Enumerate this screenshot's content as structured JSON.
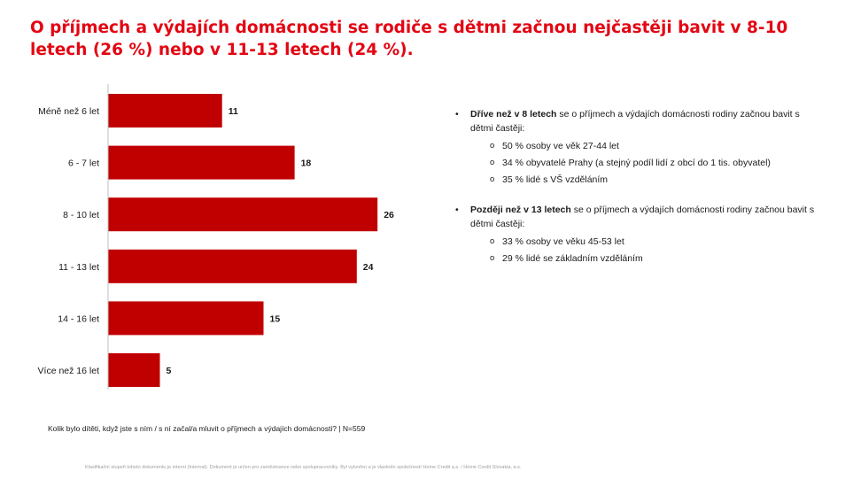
{
  "title": "O příjmech a výdajích domácnosti se rodiče s dětmi začnou nejčastěji bavit v 8-10 letech (26 %) nebo v 11-13 letech (24 %).",
  "chart_data": {
    "type": "bar",
    "orientation": "horizontal",
    "categories": [
      "Méně než 6 let",
      "6 - 7 let",
      "8 - 10 let",
      "11 - 13 let",
      "14 - 16 let",
      "Více než 16 let"
    ],
    "values": [
      11,
      18,
      26,
      24,
      15,
      5
    ],
    "xlim": [
      0,
      30
    ],
    "bar_color": "#c00000",
    "grid": false
  },
  "notes": {
    "block1": {
      "bold": "Dříve než v 8 letech",
      "rest": " se o příjmech a výdajích domácnosti rodiny začnou bavit s dětmi častěji:",
      "items": [
        "50 % osoby ve věk 27-44 let",
        "34 % obyvatelé Prahy  (a stejný podíl lidí z obcí do 1 tis. obyvatel)",
        "35 % lidé s VŠ vzděláním"
      ]
    },
    "block2": {
      "bold": "Později než v 13 letech",
      "rest": " se o příjmech a výdajích domácnosti rodiny začnou bavit s dětmi častěji:",
      "items": [
        "33 % osoby ve věku 45-53 let",
        "29 % lidé se základním vzděláním"
      ]
    }
  },
  "question": "Kolik bylo dítěti, když jste s ním / s ní začal/a mluvit o příjmech a výdajích domácnosti?  |  N=559",
  "footer": "Klasifikační stupeň tohoto dokumentu je interní (Internal). Dokument je určen pro zaměstnance nebo spolupracovníky. Byl vytvořen a je vlastněn společností Home Credit a.s. / Home Credit Slovakia, a.s."
}
